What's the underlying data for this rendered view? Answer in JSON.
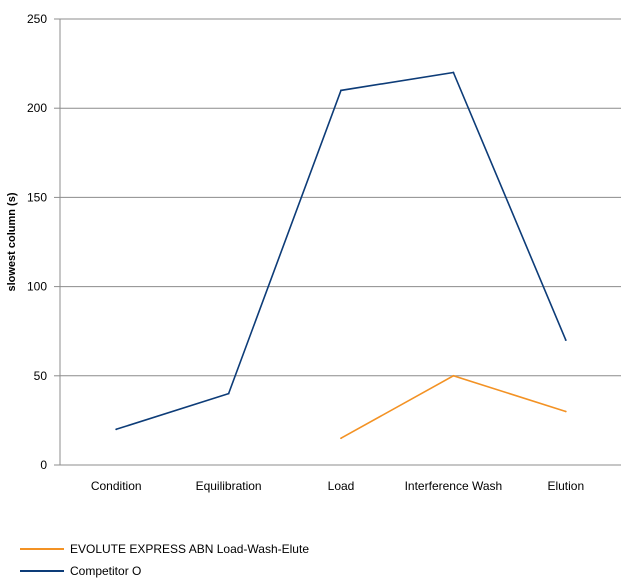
{
  "chart_data": {
    "type": "line",
    "title": "",
    "xlabel": "",
    "ylabel": "slowest column (s)",
    "categories": [
      "Condition",
      "Equilibration",
      "Load",
      "Interference Wash",
      "Elution"
    ],
    "yticks": [
      0,
      50,
      100,
      150,
      200,
      250
    ],
    "ylim": [
      0,
      250
    ],
    "grid": true,
    "legend_position": "bottom-left",
    "series": [
      {
        "name": "EVOLUTE EXPRESS ABN Load-Wash-Elute",
        "color": "#F39224",
        "values": [
          null,
          null,
          15,
          50,
          30
        ]
      },
      {
        "name": "Competitor O",
        "color": "#0D3C78",
        "values": [
          20,
          40,
          210,
          220,
          70
        ]
      }
    ]
  }
}
